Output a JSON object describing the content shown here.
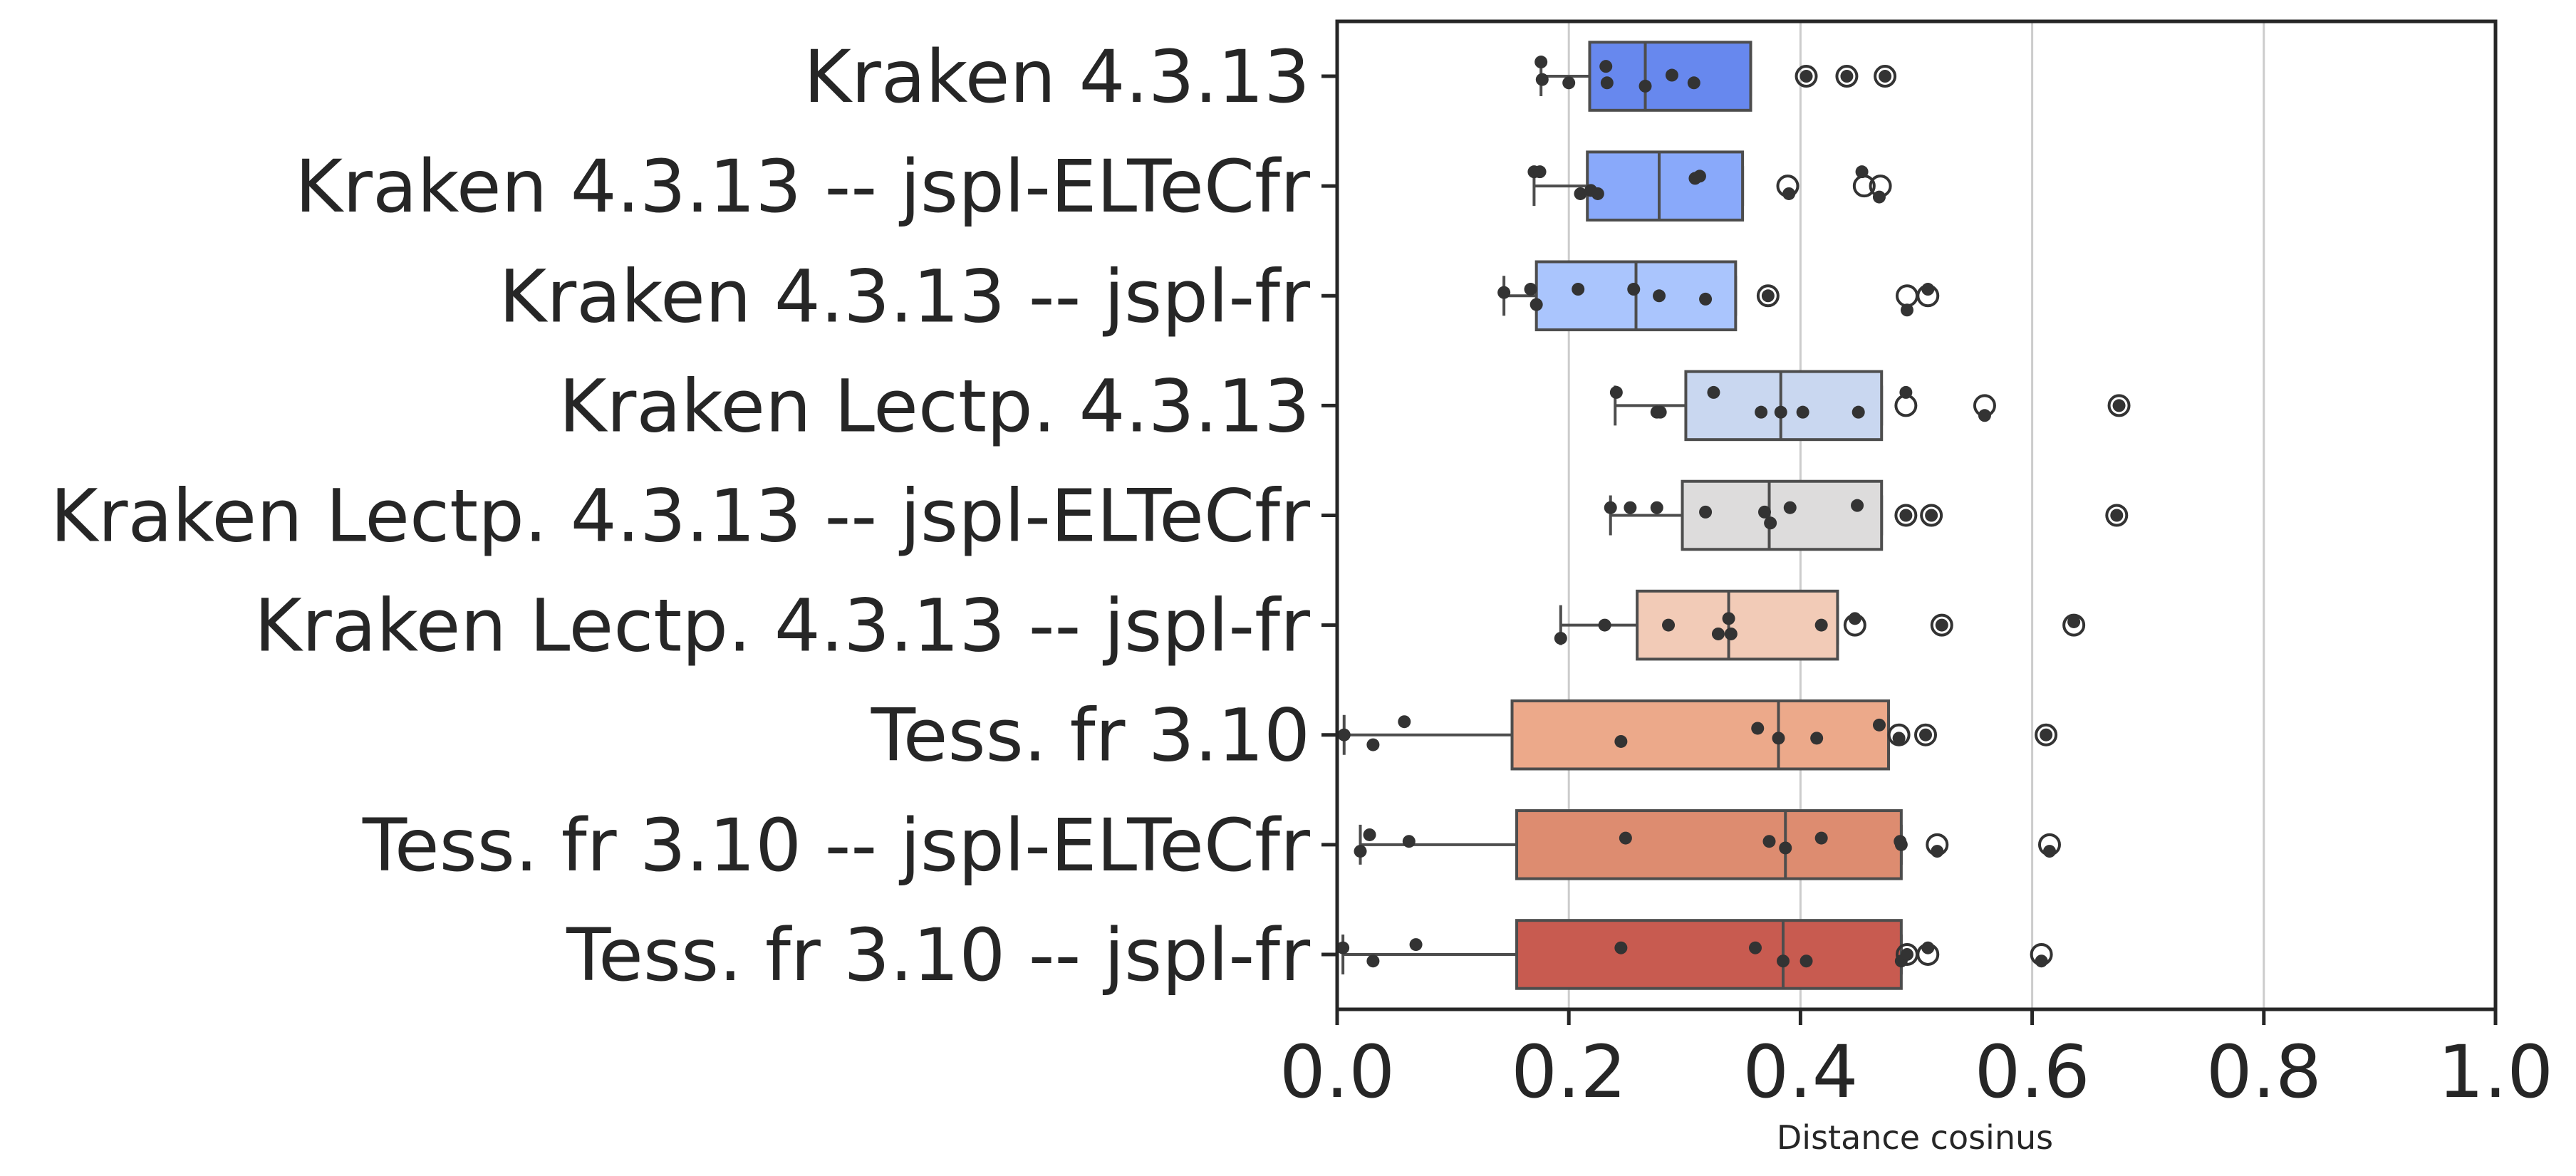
{
  "chart_data": {
    "type": "boxplot",
    "orientation": "horizontal",
    "xlabel": "Distance cosinus",
    "xlim": [
      0.0,
      1.0
    ],
    "xticks": [
      0.0,
      0.2,
      0.4,
      0.6,
      0.8,
      1.0
    ],
    "xtick_labels": [
      "0.0",
      "0.2",
      "0.4",
      "0.6",
      "0.8",
      "1.0"
    ],
    "grid": "vertical",
    "legend": "none",
    "categories": [
      "Kraken 4.3.13",
      "Kraken 4.3.13 -- jspl-ELTeCfr",
      "Kraken 4.3.13 -- jspl-fr",
      "Kraken Lectp. 4.3.13",
      "Kraken Lectp. 4.3.13 -- jspl-ELTeCfr",
      "Kraken Lectp. 4.3.13 -- jspl-fr",
      "Tess. fr 3.10",
      "Tess. fr 3.10 -- jspl-ELTeCfr",
      "Tess. fr 3.10 -- jspl-fr"
    ],
    "colors": [
      "#6788ee",
      "#89a9fa",
      "#aac5fd",
      "#c9d7f0",
      "#dddcdc",
      "#f2cbb7",
      "#eca98a",
      "#dd8c70",
      "#c85b50"
    ],
    "series": [
      {
        "category": "Kraken 4.3.13",
        "whisker_low": 0.176,
        "q1": 0.218,
        "median": 0.266,
        "q3": 0.357,
        "whisker_high": 0.357,
        "outliers": [
          0.405,
          0.44,
          0.473
        ],
        "points": [
          {
            "x": 0.176,
            "y": 0.37
          },
          {
            "x": 0.177,
            "y": 0.53
          },
          {
            "x": 0.2,
            "y": 0.56
          },
          {
            "x": 0.232,
            "y": 0.41
          },
          {
            "x": 0.233,
            "y": 0.56
          },
          {
            "x": 0.266,
            "y": 0.59
          },
          {
            "x": 0.289,
            "y": 0.49
          },
          {
            "x": 0.308,
            "y": 0.56
          },
          {
            "x": 0.405,
            "y": 0.5
          },
          {
            "x": 0.44,
            "y": 0.5
          },
          {
            "x": 0.473,
            "y": 0.5
          }
        ]
      },
      {
        "category": "Kraken 4.3.13 -- jspl-ELTeCfr",
        "whisker_low": 0.17,
        "q1": 0.216,
        "median": 0.278,
        "q3": 0.35,
        "whisker_high": 0.35,
        "outliers": [
          0.389,
          0.455,
          0.469
        ],
        "points": [
          {
            "x": 0.17,
            "y": 0.37
          },
          {
            "x": 0.175,
            "y": 0.37
          },
          {
            "x": 0.21,
            "y": 0.57
          },
          {
            "x": 0.219,
            "y": 0.54
          },
          {
            "x": 0.225,
            "y": 0.57
          },
          {
            "x": 0.309,
            "y": 0.43
          },
          {
            "x": 0.313,
            "y": 0.41
          },
          {
            "x": 0.39,
            "y": 0.57
          },
          {
            "x": 0.453,
            "y": 0.37
          },
          {
            "x": 0.468,
            "y": 0.6
          }
        ]
      },
      {
        "category": "Kraken 4.3.13 -- jspl-fr",
        "whisker_low": 0.144,
        "q1": 0.172,
        "median": 0.258,
        "q3": 0.344,
        "whisker_high": 0.344,
        "outliers": [
          0.372,
          0.492,
          0.51
        ],
        "points": [
          {
            "x": 0.144,
            "y": 0.47
          },
          {
            "x": 0.167,
            "y": 0.44
          },
          {
            "x": 0.172,
            "y": 0.58
          },
          {
            "x": 0.208,
            "y": 0.44
          },
          {
            "x": 0.256,
            "y": 0.44
          },
          {
            "x": 0.278,
            "y": 0.5
          },
          {
            "x": 0.318,
            "y": 0.53
          },
          {
            "x": 0.372,
            "y": 0.5
          },
          {
            "x": 0.492,
            "y": 0.63
          },
          {
            "x": 0.51,
            "y": 0.44
          }
        ]
      },
      {
        "category": "Kraken Lectp. 4.3.13",
        "whisker_low": 0.24,
        "q1": 0.301,
        "median": 0.383,
        "q3": 0.47,
        "whisker_high": 0.47,
        "outliers": [
          0.491,
          0.559,
          0.675
        ],
        "points": [
          {
            "x": 0.241,
            "y": 0.38
          },
          {
            "x": 0.276,
            "y": 0.56
          },
          {
            "x": 0.279,
            "y": 0.56
          },
          {
            "x": 0.325,
            "y": 0.38
          },
          {
            "x": 0.366,
            "y": 0.56
          },
          {
            "x": 0.383,
            "y": 0.56
          },
          {
            "x": 0.402,
            "y": 0.56
          },
          {
            "x": 0.45,
            "y": 0.56
          },
          {
            "x": 0.491,
            "y": 0.38
          },
          {
            "x": 0.559,
            "y": 0.59
          },
          {
            "x": 0.675,
            "y": 0.5
          }
        ]
      },
      {
        "category": "Kraken Lectp. 4.3.13 -- jspl-ELTeCfr",
        "whisker_low": 0.236,
        "q1": 0.298,
        "median": 0.373,
        "q3": 0.47,
        "whisker_high": 0.47,
        "outliers": [
          0.491,
          0.513,
          0.673
        ],
        "points": [
          {
            "x": 0.236,
            "y": 0.43
          },
          {
            "x": 0.253,
            "y": 0.43
          },
          {
            "x": 0.276,
            "y": 0.43
          },
          {
            "x": 0.318,
            "y": 0.47
          },
          {
            "x": 0.369,
            "y": 0.47
          },
          {
            "x": 0.374,
            "y": 0.57
          },
          {
            "x": 0.391,
            "y": 0.43
          },
          {
            "x": 0.449,
            "y": 0.41
          },
          {
            "x": 0.491,
            "y": 0.5
          },
          {
            "x": 0.513,
            "y": 0.5
          },
          {
            "x": 0.673,
            "y": 0.5
          }
        ]
      },
      {
        "category": "Kraken Lectp. 4.3.13 -- jspl-fr",
        "whisker_low": 0.193,
        "q1": 0.259,
        "median": 0.338,
        "q3": 0.432,
        "whisker_high": 0.432,
        "outliers": [
          0.447,
          0.522,
          0.636
        ],
        "points": [
          {
            "x": 0.193,
            "y": 0.62
          },
          {
            "x": 0.231,
            "y": 0.5
          },
          {
            "x": 0.286,
            "y": 0.5
          },
          {
            "x": 0.329,
            "y": 0.58
          },
          {
            "x": 0.338,
            "y": 0.44
          },
          {
            "x": 0.34,
            "y": 0.58
          },
          {
            "x": 0.418,
            "y": 0.5
          },
          {
            "x": 0.447,
            "y": 0.44
          },
          {
            "x": 0.522,
            "y": 0.5
          },
          {
            "x": 0.636,
            "y": 0.47
          }
        ]
      },
      {
        "category": "Tess. fr 3.10",
        "whisker_low": 0.006,
        "q1": 0.151,
        "median": 0.381,
        "q3": 0.476,
        "whisker_high": 0.476,
        "outliers": [
          0.485,
          0.508,
          0.612
        ],
        "points": [
          {
            "x": 0.006,
            "y": 0.5
          },
          {
            "x": 0.031,
            "y": 0.59
          },
          {
            "x": 0.058,
            "y": 0.38
          },
          {
            "x": 0.245,
            "y": 0.56
          },
          {
            "x": 0.363,
            "y": 0.44
          },
          {
            "x": 0.381,
            "y": 0.53
          },
          {
            "x": 0.414,
            "y": 0.53
          },
          {
            "x": 0.468,
            "y": 0.41
          },
          {
            "x": 0.485,
            "y": 0.53
          },
          {
            "x": 0.508,
            "y": 0.5
          },
          {
            "x": 0.612,
            "y": 0.5
          }
        ]
      },
      {
        "category": "Tess. fr 3.10 -- jspl-ELTeCfr",
        "whisker_low": 0.02,
        "q1": 0.155,
        "median": 0.387,
        "q3": 0.487,
        "whisker_high": 0.487,
        "outliers": [
          0.518,
          0.615
        ],
        "points": [
          {
            "x": 0.02,
            "y": 0.56
          },
          {
            "x": 0.028,
            "y": 0.41
          },
          {
            "x": 0.062,
            "y": 0.47
          },
          {
            "x": 0.249,
            "y": 0.44
          },
          {
            "x": 0.373,
            "y": 0.47
          },
          {
            "x": 0.387,
            "y": 0.53
          },
          {
            "x": 0.418,
            "y": 0.44
          },
          {
            "x": 0.486,
            "y": 0.47
          },
          {
            "x": 0.487,
            "y": 0.5
          },
          {
            "x": 0.518,
            "y": 0.56
          },
          {
            "x": 0.615,
            "y": 0.56
          }
        ]
      },
      {
        "category": "Tess. fr 3.10 -- jspl-fr",
        "whisker_low": 0.005,
        "q1": 0.155,
        "median": 0.385,
        "q3": 0.487,
        "whisker_high": 0.487,
        "outliers": [
          0.492,
          0.51,
          0.608
        ],
        "points": [
          {
            "x": 0.005,
            "y": 0.44
          },
          {
            "x": 0.031,
            "y": 0.56
          },
          {
            "x": 0.068,
            "y": 0.41
          },
          {
            "x": 0.245,
            "y": 0.44
          },
          {
            "x": 0.361,
            "y": 0.44
          },
          {
            "x": 0.385,
            "y": 0.56
          },
          {
            "x": 0.405,
            "y": 0.56
          },
          {
            "x": 0.487,
            "y": 0.56
          },
          {
            "x": 0.492,
            "y": 0.5
          },
          {
            "x": 0.51,
            "y": 0.44
          },
          {
            "x": 0.608,
            "y": 0.56
          }
        ]
      }
    ]
  }
}
